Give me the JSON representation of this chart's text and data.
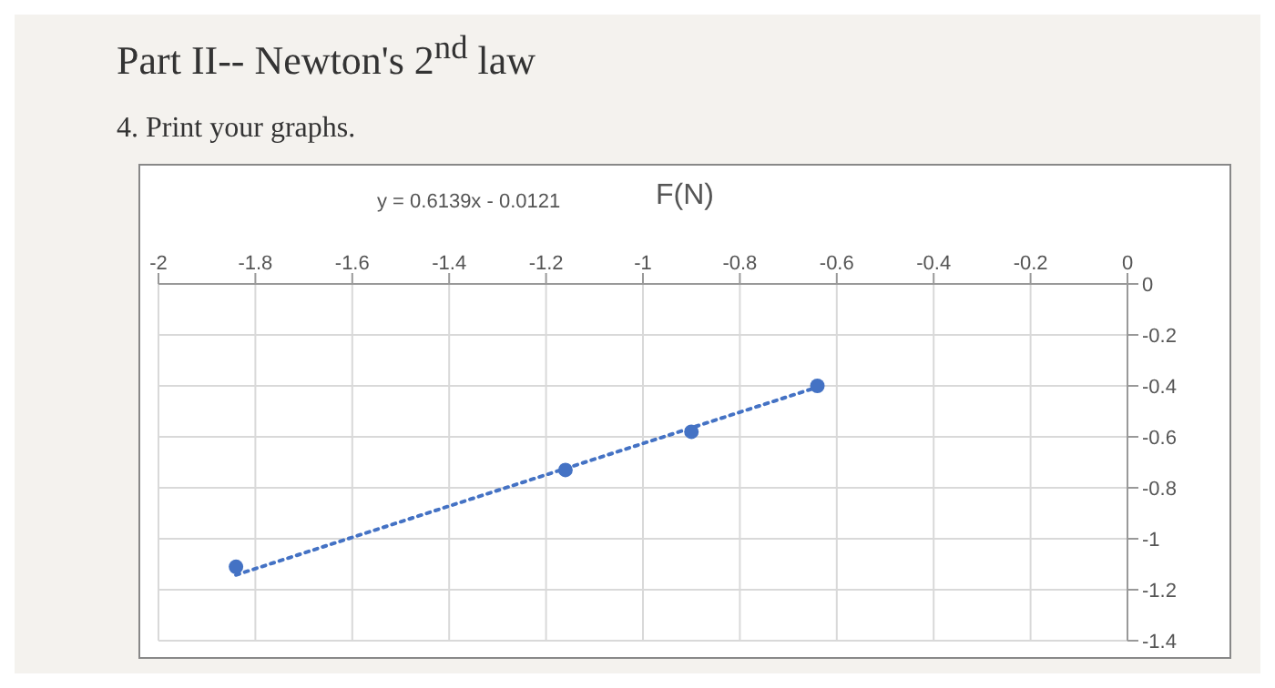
{
  "chart_data": {
    "type": "scatter",
    "title": "F(N)",
    "annotations": [
      "Part II-- Newton's 2$^{nd}$ law",
      "4. Print your graphs.",
      "y = 0.6139x - 0.0121"
    ],
    "x": [
      -1.84,
      -1.16,
      -0.9,
      -0.64
    ],
    "series": [
      {
        "color": "#4472c4",
        "values": [
          -1.11,
          -0.73,
          -0.58,
          -0.4
        ],
        "marker": "circle"
      },
      {
        "type": "line",
        "color": "#4472c4",
        "x": [
          -1.84,
          -0.64
        ],
        "values": [
          -1.142,
          -0.405
        ],
        "line_style": "dotted",
        "marker": "none"
      }
    ],
    "xlim": [
      -2,
      0
    ],
    "xticks": [
      -2,
      -1.8,
      -1.6,
      -1.4,
      -1.2,
      -1,
      -0.8,
      -0.6,
      -0.4,
      -0.2,
      0
    ],
    "ylim": [
      -1.4,
      0
    ],
    "yticks": [
      0,
      -0.2,
      -0.4,
      -0.6,
      -0.8,
      -1,
      -1.2,
      -1.4
    ],
    "grid": true,
    "legend": false
  }
}
